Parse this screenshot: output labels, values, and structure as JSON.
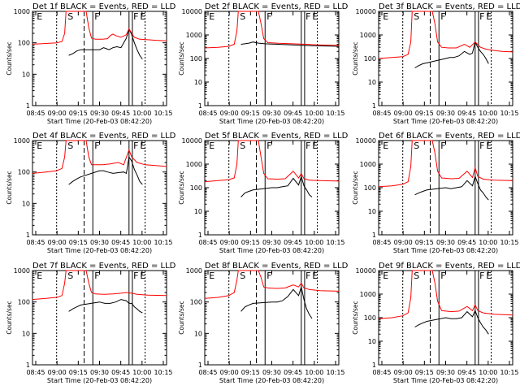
{
  "chart_data": [
    {
      "type": "line",
      "title": "Det 1f BLACK = Events, RED = LLD",
      "xlabel": "Start Time (20-Feb-03 08:42:20)",
      "ylabel": "Counts/sec",
      "x_ticks": [
        "08:45",
        "09:00",
        "09:15",
        "09:30",
        "09:45",
        "10:00",
        "10:15"
      ],
      "y_ticks": [
        "1",
        "10",
        "100",
        "1000"
      ],
      "ylim": [
        1,
        1000
      ],
      "yscale": "log",
      "marker_labels": [
        "E",
        "S",
        "F",
        "F",
        "E"
      ],
      "series": [
        {
          "name": "BLACK = Events",
          "color": "#000000",
          "x": [
            0.27,
            0.3,
            0.33,
            0.36,
            0.5,
            0.53,
            0.55,
            0.57,
            0.6,
            0.63,
            0.66,
            0.7,
            0.72,
            0.74,
            0.76,
            0.78,
            0.8,
            0.82
          ],
          "y": [
            40,
            45,
            55,
            60,
            60,
            70,
            65,
            60,
            70,
            75,
            70,
            140,
            280,
            180,
            100,
            60,
            40,
            30
          ]
        },
        {
          "name": "RED = LLD",
          "color": "#ff0000",
          "x": [
            0.0,
            0.1,
            0.18,
            0.22,
            0.24,
            0.25,
            0.4,
            0.42,
            0.44,
            0.47,
            0.52,
            0.56,
            0.58,
            0.6,
            0.62,
            0.66,
            0.7,
            0.72,
            0.74,
            0.76,
            0.8,
            0.86,
            0.92,
            1.0
          ],
          "y": [
            90,
            95,
            100,
            110,
            200,
            1000,
            1000,
            300,
            140,
            130,
            130,
            135,
            170,
            190,
            170,
            150,
            180,
            280,
            200,
            150,
            130,
            125,
            120,
            115
          ]
        }
      ]
    },
    {
      "type": "line",
      "title": "Det 2f BLACK = Events, RED = LLD",
      "xlabel": "Start Time (20-Feb-03 08:42:20)",
      "ylabel": "Counts/sec",
      "x_ticks": [
        "08:45",
        "09:00",
        "09:15",
        "09:30",
        "09:45",
        "10:00",
        "10:15"
      ],
      "y_ticks": [
        "1",
        "10",
        "100",
        "1000",
        "10000"
      ],
      "ylim": [
        1,
        10000
      ],
      "yscale": "log",
      "marker_labels": [
        "E",
        "S",
        "F",
        "F",
        "E"
      ],
      "series": [
        {
          "name": "BLACK = Events",
          "color": "#000000",
          "x": [
            0.27,
            0.3,
            0.33,
            0.36,
            0.4,
            0.45,
            0.5,
            0.55,
            0.6,
            0.65,
            0.7,
            0.75,
            0.8,
            0.9,
            1.0
          ],
          "y": [
            400,
            420,
            450,
            500,
            450,
            420,
            410,
            400,
            390,
            380,
            370,
            360,
            350,
            340,
            330
          ]
        },
        {
          "name": "RED = LLD",
          "color": "#ff0000",
          "x": [
            0.0,
            0.1,
            0.18,
            0.22,
            0.24,
            0.25,
            0.4,
            0.42,
            0.44,
            0.47,
            0.55,
            0.65,
            0.75,
            0.85,
            1.0
          ],
          "y": [
            280,
            300,
            330,
            400,
            1500,
            10000,
            10000,
            3000,
            700,
            470,
            440,
            420,
            400,
            380,
            360
          ]
        }
      ]
    },
    {
      "type": "line",
      "title": "Det 3f BLACK = Events, RED = LLD",
      "xlabel": "Start Time (20-Feb-03 08:42:20)",
      "ylabel": "Counts/sec",
      "x_ticks": [
        "08:45",
        "09:00",
        "09:15",
        "09:30",
        "09:45",
        "10:00",
        "10:15"
      ],
      "y_ticks": [
        "1",
        "10",
        "100",
        "1000",
        "10000"
      ],
      "ylim": [
        1,
        10000
      ],
      "yscale": "log",
      "marker_labels": [
        "E",
        "S",
        "F",
        "F",
        "E"
      ],
      "series": [
        {
          "name": "BLACK = Events",
          "color": "#000000",
          "x": [
            0.27,
            0.3,
            0.33,
            0.36,
            0.5,
            0.53,
            0.56,
            0.6,
            0.64,
            0.68,
            0.7,
            0.72,
            0.74,
            0.76,
            0.78,
            0.8,
            0.82
          ],
          "y": [
            40,
            50,
            60,
            65,
            100,
            110,
            110,
            130,
            200,
            150,
            170,
            500,
            300,
            200,
            150,
            100,
            60
          ]
        },
        {
          "name": "RED = LLD",
          "color": "#ff0000",
          "x": [
            0.0,
            0.1,
            0.18,
            0.22,
            0.24,
            0.25,
            0.4,
            0.42,
            0.44,
            0.47,
            0.52,
            0.58,
            0.64,
            0.68,
            0.72,
            0.76,
            0.8,
            0.86,
            0.92,
            1.0
          ],
          "y": [
            100,
            110,
            120,
            150,
            500,
            10000,
            10000,
            3000,
            500,
            300,
            280,
            280,
            400,
            300,
            500,
            300,
            250,
            220,
            200,
            190
          ]
        }
      ]
    },
    {
      "type": "line",
      "title": "Det 4f BLACK = Events, RED = LLD",
      "xlabel": "Start Time (20-Feb-03 08:42:20)",
      "ylabel": "Counts/sec",
      "x_ticks": [
        "08:45",
        "09:00",
        "09:15",
        "09:30",
        "09:45",
        "10:00",
        "10:15"
      ],
      "y_ticks": [
        "1",
        "10",
        "100",
        "1000"
      ],
      "ylim": [
        1,
        1000
      ],
      "yscale": "log",
      "marker_labels": [
        "E",
        "S",
        "F",
        "F",
        "E"
      ],
      "series": [
        {
          "name": "BLACK = Events",
          "color": "#000000",
          "x": [
            0.27,
            0.3,
            0.33,
            0.36,
            0.5,
            0.53,
            0.56,
            0.6,
            0.64,
            0.68,
            0.7,
            0.72,
            0.74,
            0.76,
            0.78,
            0.8,
            0.82
          ],
          "y": [
            40,
            50,
            60,
            70,
            110,
            110,
            100,
            90,
            95,
            100,
            90,
            300,
            220,
            120,
            80,
            50,
            40
          ]
        },
        {
          "name": "RED = LLD",
          "color": "#ff0000",
          "x": [
            0.0,
            0.1,
            0.18,
            0.22,
            0.24,
            0.25,
            0.4,
            0.42,
            0.44,
            0.47,
            0.52,
            0.58,
            0.64,
            0.68,
            0.72,
            0.74,
            0.78,
            0.84,
            0.92,
            1.0
          ],
          "y": [
            90,
            100,
            110,
            130,
            300,
            1000,
            1000,
            300,
            170,
            170,
            170,
            180,
            200,
            170,
            500,
            300,
            200,
            170,
            160,
            150
          ]
        }
      ]
    },
    {
      "type": "line",
      "title": "Det 5f BLACK = Events, RED = LLD",
      "xlabel": "Start Time (20-Feb-03 08:42:20)",
      "ylabel": "Counts/sec",
      "x_ticks": [
        "08:45",
        "09:00",
        "09:15",
        "09:30",
        "09:45",
        "10:00",
        "10:15"
      ],
      "y_ticks": [
        "1",
        "10",
        "100",
        "1000",
        "10000"
      ],
      "ylim": [
        1,
        10000
      ],
      "yscale": "log",
      "marker_labels": [
        "E",
        "S",
        "F",
        "F",
        "E"
      ],
      "series": [
        {
          "name": "BLACK = Events",
          "color": "#000000",
          "x": [
            0.27,
            0.3,
            0.33,
            0.36,
            0.5,
            0.54,
            0.58,
            0.62,
            0.66,
            0.7,
            0.72,
            0.74,
            0.76,
            0.78,
            0.8
          ],
          "y": [
            40,
            60,
            70,
            80,
            100,
            100,
            110,
            120,
            250,
            130,
            300,
            120,
            80,
            50,
            40
          ]
        },
        {
          "name": "RED = LLD",
          "color": "#ff0000",
          "x": [
            0.0,
            0.1,
            0.18,
            0.22,
            0.24,
            0.25,
            0.4,
            0.42,
            0.44,
            0.47,
            0.54,
            0.6,
            0.66,
            0.7,
            0.72,
            0.74,
            0.78,
            0.86,
            1.0
          ],
          "y": [
            180,
            200,
            220,
            260,
            1000,
            10000,
            10000,
            2000,
            400,
            240,
            230,
            240,
            500,
            260,
            400,
            240,
            210,
            200,
            190
          ]
        }
      ]
    },
    {
      "type": "line",
      "title": "Det 6f BLACK = Events, RED = LLD",
      "xlabel": "Start Time (20-Feb-03 08:42:20)",
      "ylabel": "Counts/sec",
      "x_ticks": [
        "08:45",
        "09:00",
        "09:15",
        "09:30",
        "09:45",
        "10:00",
        "10:15"
      ],
      "y_ticks": [
        "1",
        "10",
        "100",
        "1000",
        "10000"
      ],
      "ylim": [
        1,
        10000
      ],
      "yscale": "log",
      "marker_labels": [
        "E",
        "S",
        "F",
        "F",
        "E"
      ],
      "series": [
        {
          "name": "BLACK = Events",
          "color": "#000000",
          "x": [
            0.27,
            0.3,
            0.33,
            0.36,
            0.5,
            0.54,
            0.58,
            0.62,
            0.66,
            0.7,
            0.72,
            0.74,
            0.76,
            0.78,
            0.8,
            0.82
          ],
          "y": [
            50,
            60,
            70,
            80,
            100,
            90,
            100,
            110,
            200,
            120,
            300,
            150,
            80,
            60,
            40,
            30
          ]
        },
        {
          "name": "RED = LLD",
          "color": "#ff0000",
          "x": [
            0.0,
            0.1,
            0.18,
            0.22,
            0.24,
            0.25,
            0.4,
            0.42,
            0.44,
            0.47,
            0.54,
            0.6,
            0.66,
            0.7,
            0.72,
            0.74,
            0.78,
            0.86,
            1.0
          ],
          "y": [
            110,
            120,
            140,
            180,
            800,
            10000,
            10000,
            3000,
            500,
            260,
            240,
            250,
            500,
            270,
            700,
            300,
            230,
            210,
            200
          ]
        }
      ]
    },
    {
      "type": "line",
      "title": "Det 7f BLACK = Events, RED = LLD",
      "xlabel": "Start Time (20-Feb-03 08:42:20)",
      "ylabel": "Counts/sec",
      "x_ticks": [
        "08:45",
        "09:00",
        "09:15",
        "09:30",
        "09:45",
        "10:00",
        "10:15"
      ],
      "y_ticks": [
        "1",
        "10",
        "100",
        "1000"
      ],
      "ylim": [
        1,
        1000
      ],
      "yscale": "log",
      "marker_labels": [
        "E",
        "S",
        "F",
        "F",
        "E"
      ],
      "series": [
        {
          "name": "BLACK = Events",
          "color": "#000000",
          "x": [
            0.27,
            0.3,
            0.33,
            0.36,
            0.5,
            0.54,
            0.58,
            0.62,
            0.66,
            0.7,
            0.72,
            0.74,
            0.76,
            0.78,
            0.8,
            0.82
          ],
          "y": [
            50,
            60,
            70,
            80,
            100,
            90,
            90,
            100,
            120,
            110,
            90,
            90,
            70,
            60,
            50,
            45
          ]
        },
        {
          "name": "RED = LLD",
          "color": "#ff0000",
          "x": [
            0.0,
            0.1,
            0.18,
            0.22,
            0.24,
            0.25,
            0.4,
            0.42,
            0.44,
            0.47,
            0.54,
            0.6,
            0.66,
            0.7,
            0.74,
            0.78,
            0.86,
            1.0
          ],
          "y": [
            120,
            130,
            140,
            160,
            400,
            1000,
            1000,
            400,
            200,
            180,
            175,
            180,
            190,
            200,
            190,
            175,
            165,
            160
          ]
        }
      ]
    },
    {
      "type": "line",
      "title": "Det 8f BLACK = Events, RED = LLD",
      "xlabel": "Start Time (20-Feb-03 08:42:20)",
      "ylabel": "Counts/sec",
      "x_ticks": [
        "08:45",
        "09:00",
        "09:15",
        "09:30",
        "09:45",
        "10:00",
        "10:15"
      ],
      "y_ticks": [
        "1",
        "10",
        "100",
        "1000"
      ],
      "ylim": [
        1,
        1000
      ],
      "yscale": "log",
      "marker_labels": [
        "E",
        "S",
        "F",
        "F",
        "E"
      ],
      "series": [
        {
          "name": "BLACK = Events",
          "color": "#000000",
          "x": [
            0.27,
            0.3,
            0.33,
            0.36,
            0.5,
            0.54,
            0.58,
            0.62,
            0.66,
            0.7,
            0.72,
            0.74,
            0.76,
            0.78,
            0.8
          ],
          "y": [
            50,
            70,
            80,
            90,
            100,
            100,
            110,
            150,
            250,
            160,
            300,
            120,
            60,
            40,
            30
          ]
        },
        {
          "name": "RED = LLD",
          "color": "#ff0000",
          "x": [
            0.0,
            0.1,
            0.18,
            0.22,
            0.24,
            0.25,
            0.4,
            0.42,
            0.44,
            0.47,
            0.54,
            0.6,
            0.66,
            0.7,
            0.72,
            0.74,
            0.78,
            0.86,
            1.0
          ],
          "y": [
            130,
            140,
            160,
            200,
            500,
            1000,
            1000,
            600,
            300,
            280,
            270,
            280,
            350,
            300,
            400,
            280,
            250,
            230,
            220
          ]
        }
      ]
    },
    {
      "type": "line",
      "title": "Det 9f BLACK = Events, RED = LLD",
      "xlabel": "Start Time (20-Feb-03 08:42:20)",
      "ylabel": "Counts/sec",
      "x_ticks": [
        "08:45",
        "09:00",
        "09:15",
        "09:30",
        "09:45",
        "10:00",
        "10:15"
      ],
      "y_ticks": [
        "1",
        "10",
        "100",
        "1000",
        "10000"
      ],
      "ylim": [
        1,
        10000
      ],
      "yscale": "log",
      "marker_labels": [
        "E",
        "S",
        "F",
        "F",
        "E"
      ],
      "series": [
        {
          "name": "BLACK = Events",
          "color": "#000000",
          "x": [
            0.27,
            0.3,
            0.33,
            0.36,
            0.5,
            0.54,
            0.58,
            0.62,
            0.66,
            0.7,
            0.72,
            0.74,
            0.76,
            0.78,
            0.8,
            0.82
          ],
          "y": [
            40,
            50,
            60,
            70,
            100,
            90,
            90,
            100,
            180,
            110,
            200,
            100,
            60,
            40,
            30,
            20
          ]
        },
        {
          "name": "RED = LLD",
          "color": "#ff0000",
          "x": [
            0.0,
            0.1,
            0.18,
            0.22,
            0.24,
            0.25,
            0.4,
            0.42,
            0.44,
            0.47,
            0.54,
            0.6,
            0.66,
            0.7,
            0.72,
            0.74,
            0.78,
            0.86,
            1.0
          ],
          "y": [
            90,
            100,
            120,
            160,
            700,
            10000,
            10000,
            3000,
            500,
            200,
            180,
            190,
            300,
            200,
            350,
            200,
            160,
            140,
            130
          ]
        }
      ]
    }
  ]
}
